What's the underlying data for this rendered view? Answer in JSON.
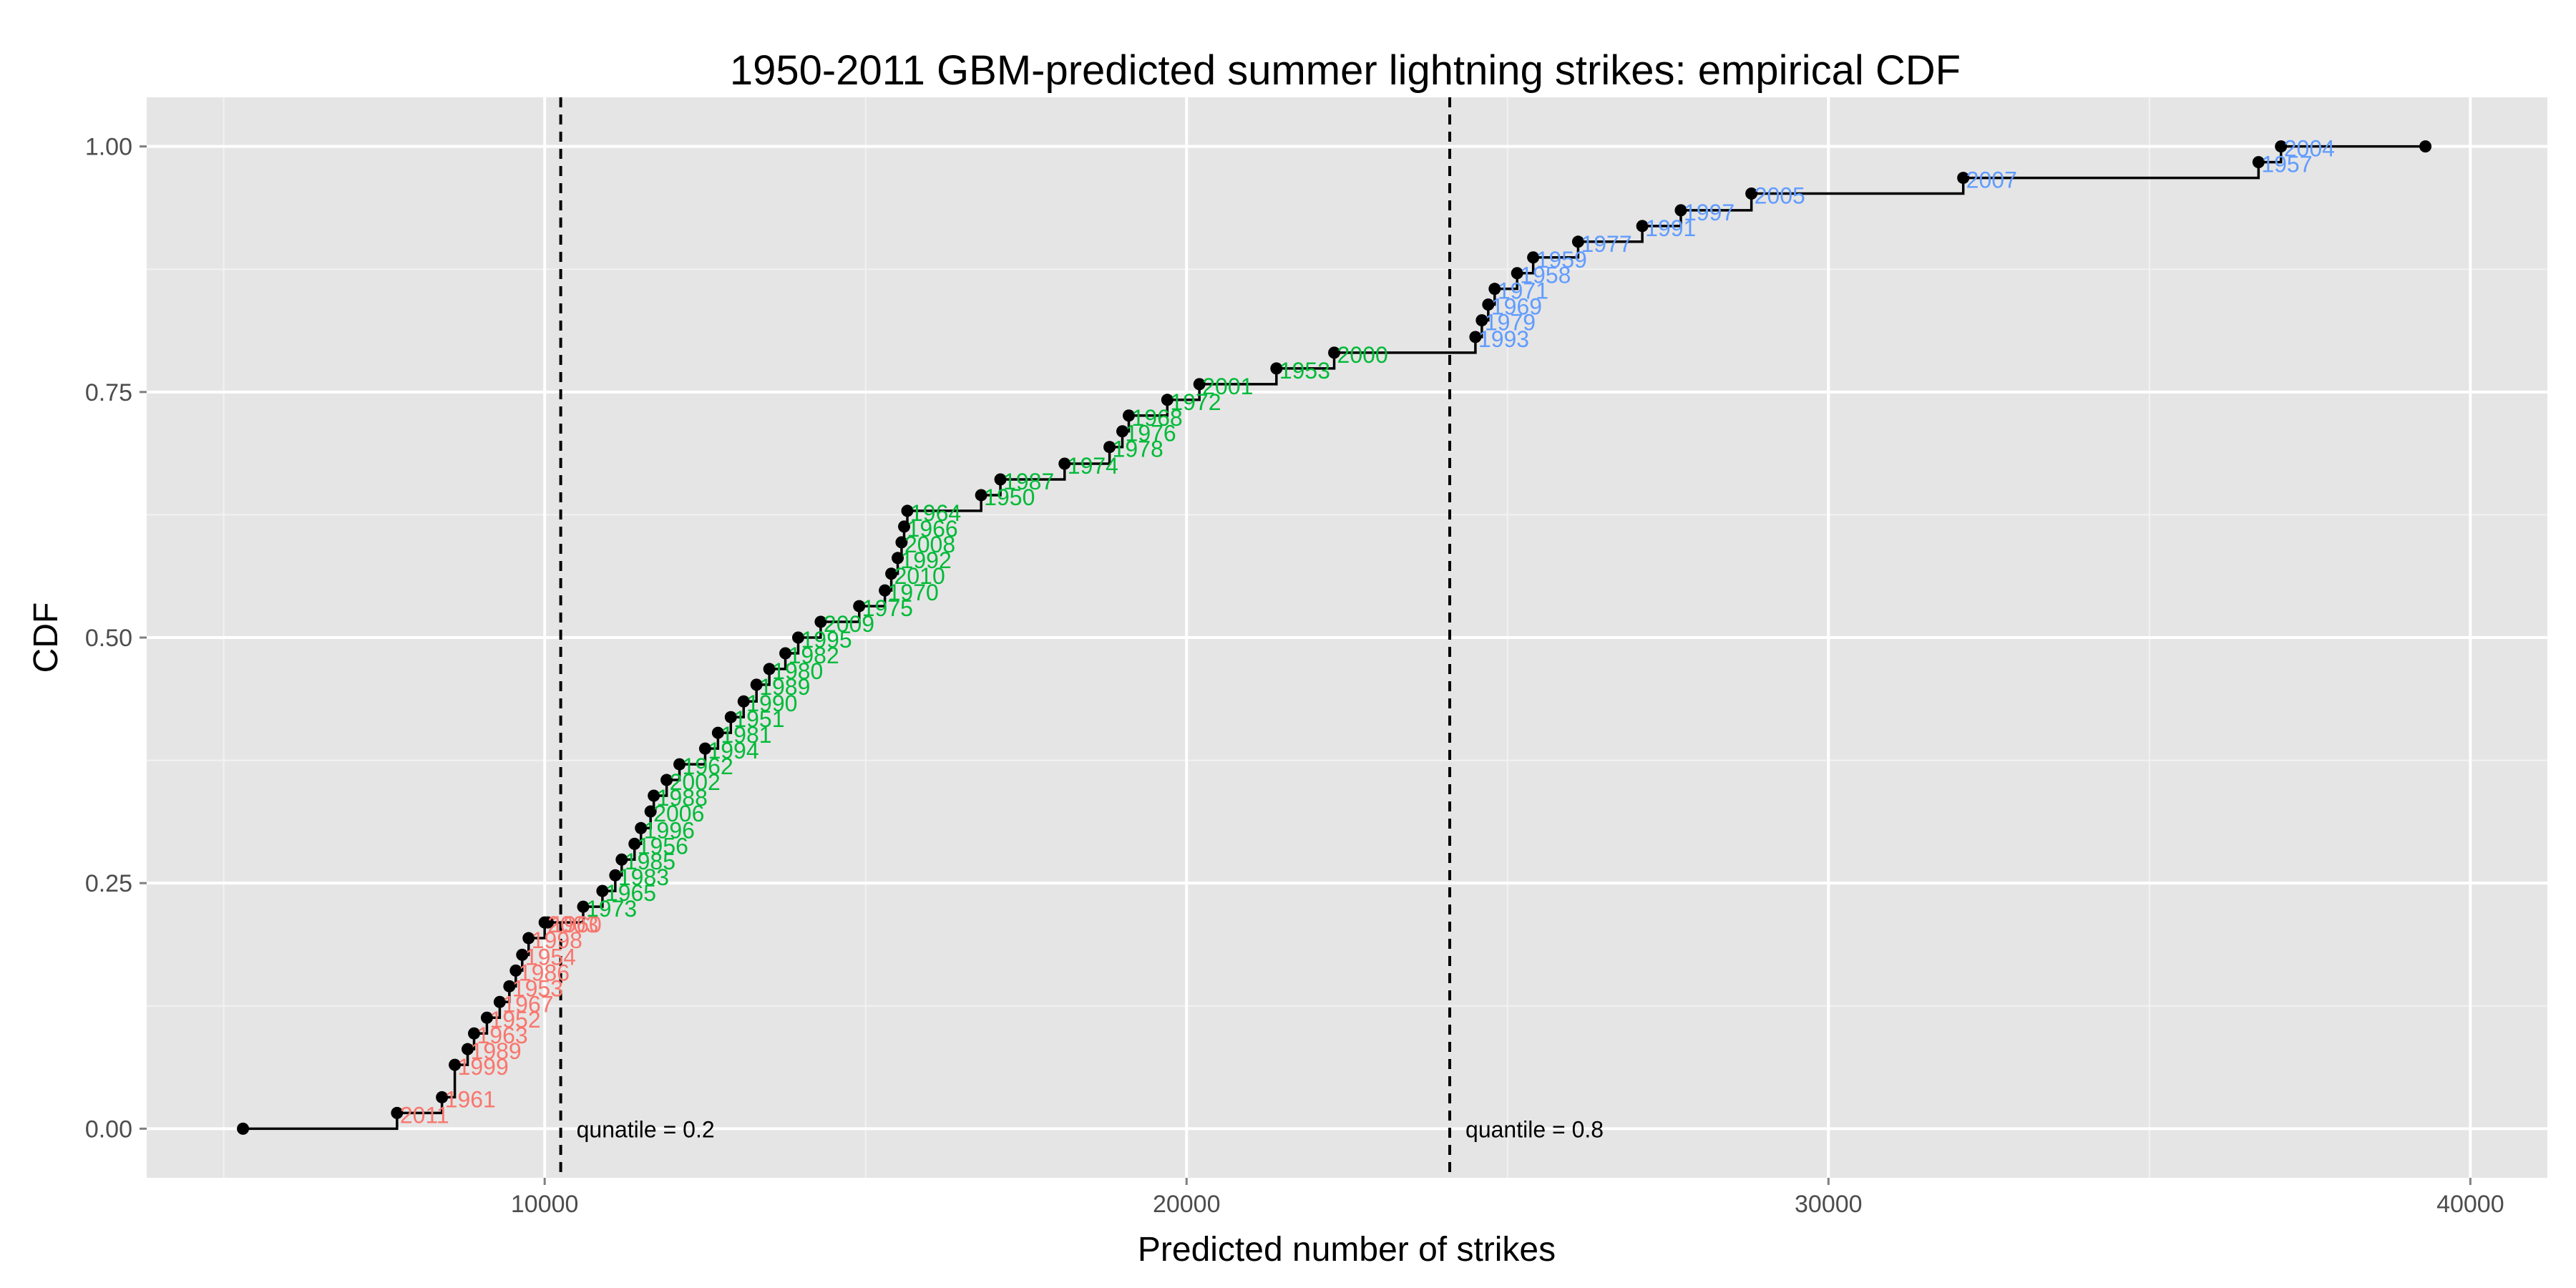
{
  "chart_data": {
    "type": "step",
    "title": "1950-2011 GBM-predicted summer lightning strikes: empirical CDF",
    "xlabel": "Predicted number of strikes",
    "ylabel": "CDF",
    "xlim": [
      3800,
      41200
    ],
    "ylim": [
      -0.05,
      1.05
    ],
    "x_ticks": [
      10000,
      20000,
      30000,
      40000
    ],
    "x_tick_labels": [
      "10000",
      "20000",
      "30000",
      "40000"
    ],
    "y_ticks": [
      0,
      0.25,
      0.5,
      0.75,
      1.0
    ],
    "y_tick_labels": [
      "0.00",
      "0.25",
      "0.50",
      "0.75",
      "1.00"
    ],
    "grid": true,
    "colors": {
      "panel": "#e5e5e5",
      "grid_major": "#ffffff",
      "grid_minor": "#f2f2f2",
      "low": "#f8766d",
      "mid": "#00ba38",
      "high": "#619cff",
      "step": "#000000"
    },
    "quantile_lines": [
      {
        "x": 10250,
        "label": "qunatile = 0.2"
      },
      {
        "x": 24100,
        "label": "quantile = 0.8"
      }
    ],
    "groups": [
      {
        "color": "low",
        "points": [
          {
            "x": 7700,
            "y": 0.016,
            "label": "2011"
          },
          {
            "x": 8400,
            "y": 0.032,
            "label": "1961"
          },
          {
            "x": 8600,
            "y": 0.065,
            "label": "1999"
          },
          {
            "x": 8800,
            "y": 0.081,
            "label": "1989"
          },
          {
            "x": 8900,
            "y": 0.097,
            "label": "1963"
          },
          {
            "x": 9100,
            "y": 0.113,
            "label": "1952"
          },
          {
            "x": 9300,
            "y": 0.129,
            "label": "1967"
          },
          {
            "x": 9450,
            "y": 0.145,
            "label": "1953"
          },
          {
            "x": 9550,
            "y": 0.161,
            "label": "1986"
          },
          {
            "x": 9650,
            "y": 0.177,
            "label": "1954"
          },
          {
            "x": 9750,
            "y": 0.194,
            "label": "1998"
          },
          {
            "x": 10000,
            "y": 0.21,
            "label": "2003"
          },
          {
            "x": 10050,
            "y": 0.21,
            "label": "1960"
          }
        ]
      },
      {
        "color": "mid",
        "points": [
          {
            "x": 10600,
            "y": 0.226,
            "label": "1973"
          },
          {
            "x": 10900,
            "y": 0.242,
            "label": "1965"
          },
          {
            "x": 11100,
            "y": 0.258,
            "label": "1983"
          },
          {
            "x": 11200,
            "y": 0.274,
            "label": "1985"
          },
          {
            "x": 11400,
            "y": 0.29,
            "label": "1956"
          },
          {
            "x": 11500,
            "y": 0.306,
            "label": "1996"
          },
          {
            "x": 11650,
            "y": 0.323,
            "label": "2006"
          },
          {
            "x": 11700,
            "y": 0.339,
            "label": "1988"
          },
          {
            "x": 11900,
            "y": 0.355,
            "label": "2002"
          },
          {
            "x": 12100,
            "y": 0.371,
            "label": "1962"
          },
          {
            "x": 12500,
            "y": 0.387,
            "label": "1994"
          },
          {
            "x": 12700,
            "y": 0.403,
            "label": "1981"
          },
          {
            "x": 12900,
            "y": 0.419,
            "label": "1951"
          },
          {
            "x": 13100,
            "y": 0.435,
            "label": "1990"
          },
          {
            "x": 13300,
            "y": 0.452,
            "label": "1989"
          },
          {
            "x": 13500,
            "y": 0.468,
            "label": "1980"
          },
          {
            "x": 13750,
            "y": 0.484,
            "label": "1982"
          },
          {
            "x": 13950,
            "y": 0.5,
            "label": "1995"
          },
          {
            "x": 14300,
            "y": 0.516,
            "label": "2009"
          },
          {
            "x": 14900,
            "y": 0.532,
            "label": "1975"
          },
          {
            "x": 15300,
            "y": 0.548,
            "label": "1970"
          },
          {
            "x": 15400,
            "y": 0.565,
            "label": "2010"
          },
          {
            "x": 15500,
            "y": 0.581,
            "label": "1992"
          },
          {
            "x": 15560,
            "y": 0.597,
            "label": "2008"
          },
          {
            "x": 15600,
            "y": 0.613,
            "label": "1966"
          },
          {
            "x": 15650,
            "y": 0.629,
            "label": "1964"
          },
          {
            "x": 16800,
            "y": 0.645,
            "label": "1950"
          },
          {
            "x": 17100,
            "y": 0.661,
            "label": "1987"
          },
          {
            "x": 18100,
            "y": 0.677,
            "label": "1974"
          },
          {
            "x": 18800,
            "y": 0.694,
            "label": "1978"
          },
          {
            "x": 19000,
            "y": 0.71,
            "label": "1976"
          },
          {
            "x": 19100,
            "y": 0.726,
            "label": "1968"
          },
          {
            "x": 19700,
            "y": 0.742,
            "label": "1972"
          },
          {
            "x": 20200,
            "y": 0.758,
            "label": "2001"
          },
          {
            "x": 21400,
            "y": 0.774,
            "label": "1953"
          },
          {
            "x": 22300,
            "y": 0.79,
            "label": "2000"
          }
        ]
      },
      {
        "color": "high",
        "points": [
          {
            "x": 24500,
            "y": 0.806,
            "label": "1993"
          },
          {
            "x": 24600,
            "y": 0.823,
            "label": "1979"
          },
          {
            "x": 24700,
            "y": 0.839,
            "label": "1969"
          },
          {
            "x": 24800,
            "y": 0.855,
            "label": "1971"
          },
          {
            "x": 25150,
            "y": 0.871,
            "label": "1958"
          },
          {
            "x": 25400,
            "y": 0.887,
            "label": "1959"
          },
          {
            "x": 26100,
            "y": 0.903,
            "label": "1977"
          },
          {
            "x": 27100,
            "y": 0.919,
            "label": "1991"
          },
          {
            "x": 27700,
            "y": 0.935,
            "label": "1997"
          },
          {
            "x": 28800,
            "y": 0.952,
            "label": "2005"
          },
          {
            "x": 32100,
            "y": 0.968,
            "label": "2007"
          },
          {
            "x": 36700,
            "y": 0.984,
            "label": "1957"
          },
          {
            "x": 37050,
            "y": 1.0,
            "label": "2004"
          }
        ]
      }
    ],
    "endpoints": [
      {
        "x": 5300,
        "y": 0.0
      },
      {
        "x": 39300,
        "y": 1.0
      }
    ]
  }
}
